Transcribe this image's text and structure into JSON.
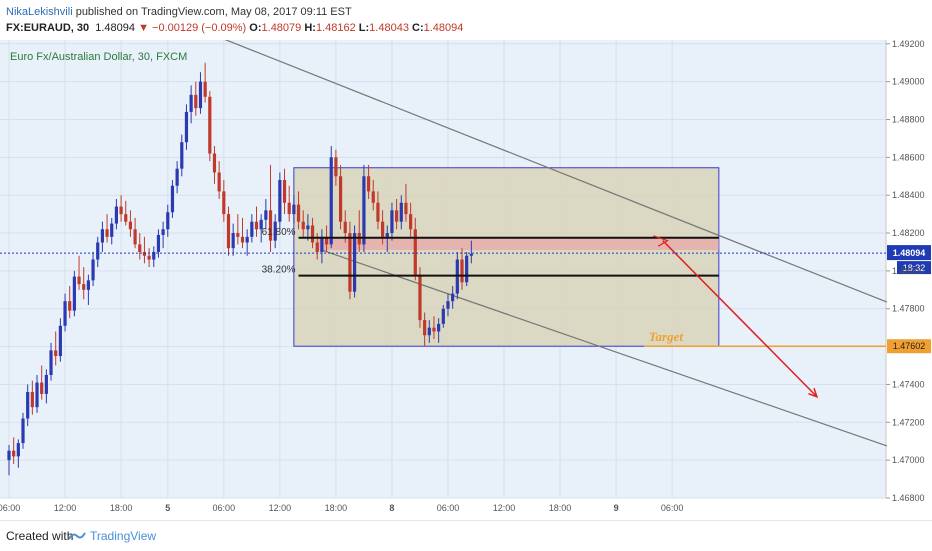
{
  "header": {
    "author": "NikaLekishvili",
    "published_text": " published on TradingView.com, May 08, 2017 09:11 EST",
    "symbol": "FX:EURAUD, 30",
    "last": "1.48094",
    "change": "▼ −0.00129 (−0.09%)",
    "o_label": "O:",
    "o_value": "1.48079",
    "h_label": "H:",
    "h_value": "1.48162",
    "l_label": "L:",
    "l_value": "1.48043",
    "c_label": "C:",
    "c_value": "1.48094"
  },
  "footer": {
    "created_with": "Created with",
    "brand": "TradingView"
  },
  "colors": {
    "bg": "#e8f0fa",
    "bull": "#2b3ab0",
    "bear": "#c0392b",
    "zone_fill": "#d8d4b8",
    "zone_stroke": "#3a3ad0",
    "fib_band": "#e8a8a8",
    "target_line": "#f0a030",
    "arrow": "#e02020",
    "channel": "#777777",
    "price_line": "#2233cc"
  },
  "chart_data": {
    "type": "candlestick",
    "title": "Euro Fx/Australian Dollar, 30, FXCM",
    "ylim": [
      1.468,
      1.4922
    ],
    "yticks": [
      "1.49200",
      "1.49000",
      "1.48800",
      "1.48600",
      "1.48400",
      "1.48200",
      "1.48000",
      "1.47800",
      "1.47600",
      "1.47400",
      "1.47200",
      "1.47000",
      "1.46800"
    ],
    "xticks": [
      {
        "i": 0,
        "label": "06:00"
      },
      {
        "i": 12,
        "label": "12:00"
      },
      {
        "i": 24,
        "label": "18:00"
      },
      {
        "i": 34,
        "label": "5"
      },
      {
        "i": 46,
        "label": "06:00"
      },
      {
        "i": 58,
        "label": "12:00"
      },
      {
        "i": 70,
        "label": "18:00"
      },
      {
        "i": 82,
        "label": "8"
      },
      {
        "i": 94,
        "label": "06:00"
      },
      {
        "i": 106,
        "label": "12:00"
      },
      {
        "i": 118,
        "label": "18:00"
      },
      {
        "i": 130,
        "label": "9"
      },
      {
        "i": 142,
        "label": "06:00"
      }
    ],
    "candles": [
      [
        1.47,
        1.4708,
        1.4692,
        1.4705
      ],
      [
        1.4705,
        1.4712,
        1.4698,
        1.4702
      ],
      [
        1.4702,
        1.4711,
        1.4696,
        1.4709
      ],
      [
        1.4709,
        1.4725,
        1.4706,
        1.4722
      ],
      [
        1.4722,
        1.474,
        1.4718,
        1.4736
      ],
      [
        1.4736,
        1.4742,
        1.4724,
        1.4728
      ],
      [
        1.4728,
        1.4745,
        1.4725,
        1.4741
      ],
      [
        1.4741,
        1.475,
        1.4732,
        1.4735
      ],
      [
        1.4735,
        1.4748,
        1.473,
        1.4745
      ],
      [
        1.4745,
        1.4762,
        1.4742,
        1.4758
      ],
      [
        1.4758,
        1.4768,
        1.475,
        1.4755
      ],
      [
        1.4755,
        1.4775,
        1.4752,
        1.4771
      ],
      [
        1.4771,
        1.4788,
        1.4768,
        1.4784
      ],
      [
        1.4784,
        1.4792,
        1.4775,
        1.4779
      ],
      [
        1.4779,
        1.48,
        1.4776,
        1.4797
      ],
      [
        1.4797,
        1.4808,
        1.479,
        1.4793
      ],
      [
        1.4793,
        1.4802,
        1.4785,
        1.479
      ],
      [
        1.479,
        1.4798,
        1.4782,
        1.4795
      ],
      [
        1.4795,
        1.481,
        1.4792,
        1.4806
      ],
      [
        1.4806,
        1.4818,
        1.4802,
        1.4815
      ],
      [
        1.4815,
        1.4826,
        1.481,
        1.4822
      ],
      [
        1.4822,
        1.483,
        1.4815,
        1.4818
      ],
      [
        1.4818,
        1.4828,
        1.4814,
        1.4825
      ],
      [
        1.4825,
        1.4838,
        1.4822,
        1.4834
      ],
      [
        1.4834,
        1.484,
        1.4826,
        1.483
      ],
      [
        1.483,
        1.4837,
        1.4824,
        1.4826
      ],
      [
        1.4826,
        1.4832,
        1.4818,
        1.4822
      ],
      [
        1.4822,
        1.4828,
        1.4812,
        1.4814
      ],
      [
        1.4814,
        1.482,
        1.4806,
        1.481
      ],
      [
        1.481,
        1.4818,
        1.4804,
        1.4808
      ],
      [
        1.4808,
        1.4812,
        1.4802,
        1.4806
      ],
      [
        1.4806,
        1.4813,
        1.4802,
        1.481
      ],
      [
        1.481,
        1.4822,
        1.4807,
        1.4819
      ],
      [
        1.4819,
        1.4826,
        1.4812,
        1.4822
      ],
      [
        1.4822,
        1.4835,
        1.4818,
        1.4831
      ],
      [
        1.4831,
        1.4848,
        1.4828,
        1.4845
      ],
      [
        1.4845,
        1.4858,
        1.4841,
        1.4854
      ],
      [
        1.4854,
        1.4872,
        1.485,
        1.4868
      ],
      [
        1.4868,
        1.4888,
        1.4864,
        1.4884
      ],
      [
        1.4884,
        1.4898,
        1.4878,
        1.4893
      ],
      [
        1.4893,
        1.49,
        1.4882,
        1.4886
      ],
      [
        1.4886,
        1.4905,
        1.4883,
        1.49
      ],
      [
        1.49,
        1.491,
        1.4889,
        1.4892
      ],
      [
        1.4892,
        1.4895,
        1.4858,
        1.4862
      ],
      [
        1.4862,
        1.4866,
        1.4846,
        1.4852
      ],
      [
        1.4852,
        1.4858,
        1.4838,
        1.4842
      ],
      [
        1.4842,
        1.4848,
        1.4826,
        1.483
      ],
      [
        1.483,
        1.4834,
        1.4808,
        1.4812
      ],
      [
        1.4812,
        1.4825,
        1.4808,
        1.482
      ],
      [
        1.482,
        1.483,
        1.4814,
        1.4818
      ],
      [
        1.4818,
        1.4828,
        1.4812,
        1.4815
      ],
      [
        1.4815,
        1.4822,
        1.4808,
        1.4818
      ],
      [
        1.4818,
        1.483,
        1.4815,
        1.4826
      ],
      [
        1.4826,
        1.4834,
        1.4818,
        1.4822
      ],
      [
        1.4822,
        1.483,
        1.4815,
        1.4827
      ],
      [
        1.4827,
        1.4838,
        1.4822,
        1.4832
      ],
      [
        1.4832,
        1.4856,
        1.481,
        1.4816
      ],
      [
        1.4816,
        1.483,
        1.4812,
        1.4826
      ],
      [
        1.4826,
        1.4852,
        1.4822,
        1.4848
      ],
      [
        1.4848,
        1.4854,
        1.483,
        1.4836
      ],
      [
        1.4836,
        1.4845,
        1.4826,
        1.483
      ],
      [
        1.483,
        1.484,
        1.4825,
        1.4835
      ],
      [
        1.4835,
        1.4842,
        1.4822,
        1.4826
      ],
      [
        1.4826,
        1.4832,
        1.4818,
        1.4822
      ],
      [
        1.4822,
        1.483,
        1.4816,
        1.4824
      ],
      [
        1.4824,
        1.4828,
        1.4812,
        1.4815
      ],
      [
        1.4815,
        1.482,
        1.4806,
        1.481
      ],
      [
        1.481,
        1.4822,
        1.4804,
        1.4818
      ],
      [
        1.4818,
        1.4824,
        1.481,
        1.4814
      ],
      [
        1.4814,
        1.4866,
        1.4812,
        1.486
      ],
      [
        1.486,
        1.4864,
        1.4845,
        1.485
      ],
      [
        1.485,
        1.4856,
        1.4822,
        1.4826
      ],
      [
        1.4826,
        1.4832,
        1.4815,
        1.482
      ],
      [
        1.482,
        1.4826,
        1.4785,
        1.4789
      ],
      [
        1.4789,
        1.4824,
        1.4786,
        1.482
      ],
      [
        1.482,
        1.4832,
        1.481,
        1.4814
      ],
      [
        1.4814,
        1.4856,
        1.481,
        1.485
      ],
      [
        1.485,
        1.4856,
        1.4838,
        1.4842
      ],
      [
        1.4842,
        1.4848,
        1.4832,
        1.4836
      ],
      [
        1.4836,
        1.4842,
        1.4822,
        1.4826
      ],
      [
        1.4826,
        1.4832,
        1.4814,
        1.4818
      ],
      [
        1.4818,
        1.4824,
        1.481,
        1.482
      ],
      [
        1.482,
        1.4836,
        1.4816,
        1.4832
      ],
      [
        1.4832,
        1.4838,
        1.4822,
        1.4826
      ],
      [
        1.4826,
        1.484,
        1.4822,
        1.4836
      ],
      [
        1.4836,
        1.4846,
        1.4826,
        1.483
      ],
      [
        1.483,
        1.4836,
        1.4818,
        1.4822
      ],
      [
        1.4822,
        1.4828,
        1.4795,
        1.4798
      ],
      [
        1.4798,
        1.4802,
        1.477,
        1.4774
      ],
      [
        1.4774,
        1.4778,
        1.476,
        1.4766
      ],
      [
        1.4766,
        1.4774,
        1.4762,
        1.477
      ],
      [
        1.477,
        1.4776,
        1.4764,
        1.4768
      ],
      [
        1.4768,
        1.4775,
        1.4762,
        1.4772
      ],
      [
        1.4772,
        1.4782,
        1.477,
        1.478
      ],
      [
        1.478,
        1.4788,
        1.4776,
        1.4784
      ],
      [
        1.4784,
        1.4792,
        1.478,
        1.4788
      ],
      [
        1.4788,
        1.481,
        1.4785,
        1.4806
      ],
      [
        1.4806,
        1.4812,
        1.479,
        1.4794
      ],
      [
        1.4794,
        1.481,
        1.4792,
        1.4808
      ],
      [
        1.4808,
        1.4816,
        1.4804,
        1.4809
      ]
    ],
    "fib_levels": [
      {
        "label": "61.80%",
        "price": 1.48175
      },
      {
        "label": "38.20%",
        "price": 1.47975
      }
    ],
    "target": {
      "label": "Target",
      "price": 1.47602,
      "axis_label": "1.47602"
    },
    "last_price": {
      "price": 1.48094,
      "axis_label": "1.48094",
      "countdown": "18:32"
    }
  }
}
